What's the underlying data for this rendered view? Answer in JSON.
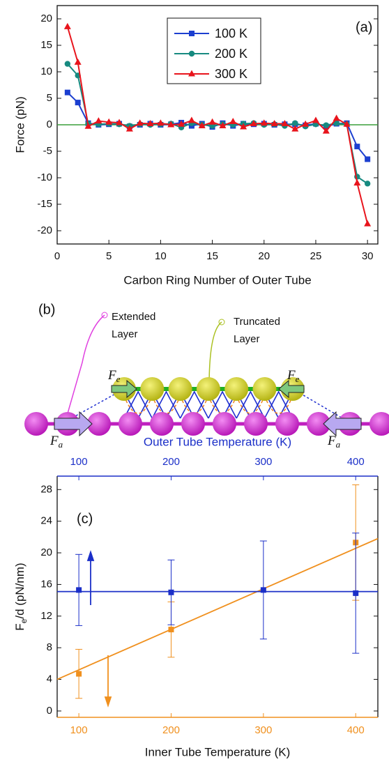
{
  "chart_data": [
    {
      "type": "line",
      "annotation": "(a)",
      "x_label": "Carbon Ring Number of Outer Tube",
      "y_label": "Force (pN)",
      "x": [
        1,
        2,
        3,
        4,
        5,
        6,
        7,
        8,
        9,
        10,
        11,
        12,
        13,
        14,
        15,
        16,
        17,
        18,
        19,
        20,
        21,
        22,
        23,
        24,
        25,
        26,
        27,
        28,
        29,
        30
      ],
      "xlim": [
        0,
        31
      ],
      "xticks": [
        0,
        5,
        10,
        15,
        20,
        25,
        30
      ],
      "ylim": [
        -22.5,
        22.5
      ],
      "yticks": [
        -20,
        -15,
        -10,
        -5,
        0,
        5,
        10,
        15,
        20
      ],
      "reference_line": {
        "y": 0,
        "color": "#3a9e3a"
      },
      "series": [
        {
          "name": "100 K",
          "color": "#1c3fd0",
          "marker": "square",
          "values": [
            6.1,
            4.2,
            0.3,
            0,
            0.1,
            0.2,
            -0.3,
            0,
            0.2,
            0,
            0.1,
            0.4,
            -0.2,
            0.2,
            -0.4,
            0.3,
            -0.2,
            0.2,
            0.1,
            0.2,
            0,
            0.1,
            0.1,
            -0.1,
            0.2,
            -0.3,
            0.2,
            0.3,
            -4.1,
            -6.5
          ]
        },
        {
          "name": "200 K",
          "color": "#178a80",
          "marker": "circle",
          "values": [
            11.5,
            9.3,
            0.2,
            0.1,
            0.2,
            0.1,
            -0.2,
            0.1,
            0,
            0.1,
            0.2,
            -0.5,
            0.3,
            0,
            -0.2,
            0.1,
            0,
            0.2,
            0.3,
            0,
            0.1,
            -0.2,
            0.3,
            -0.3,
            0.1,
            -0.1,
            0.3,
            0.1,
            -9.8,
            -11.1
          ]
        },
        {
          "name": "300 K",
          "color": "#e8141c",
          "marker": "triangle",
          "values": [
            18.5,
            11.8,
            -0.3,
            0.7,
            0.5,
            0.4,
            -0.8,
            0.3,
            0.2,
            0.3,
            0,
            0.1,
            0.8,
            -0.2,
            0.5,
            -0.2,
            0.6,
            -0.4,
            0.2,
            0.3,
            0.2,
            0.2,
            -0.8,
            0.1,
            0.8,
            -1.2,
            1.2,
            0.1,
            -11.0,
            -18.7
          ]
        }
      ]
    },
    {
      "type": "scatter",
      "annotation": "(c)",
      "x_label": "Inner Tube Temperature (K)",
      "x2_label": "Outer Tube Temperature (K)",
      "y_label": {
        "base": "F",
        "sub": "e",
        "rest": "/d (pN/nm)"
      },
      "xlim": [
        76.5,
        424
      ],
      "xticks": [
        100,
        200,
        300,
        400
      ],
      "x_color": "#f0901e",
      "x2lim": [
        76.5,
        424
      ],
      "x2ticks": [
        100,
        200,
        300,
        400
      ],
      "x2_color": "#1b2fc8",
      "ylim": [
        -0.8,
        29.7
      ],
      "yticks": [
        0,
        4,
        8,
        12,
        16,
        20,
        24,
        28
      ],
      "series": [
        {
          "color": "#f0901e",
          "x": [
            100,
            200,
            400
          ],
          "values": [
            4.7,
            10.3,
            21.3
          ],
          "errors": [
            3.1,
            3.5,
            7.3
          ]
        },
        {
          "color": "#1b2fc8",
          "axis": "x2",
          "x": [
            100,
            200,
            300,
            400
          ],
          "values": [
            15.3,
            15.0,
            15.3,
            14.9
          ],
          "errors": [
            4.5,
            4.1,
            6.2,
            7.6
          ]
        }
      ],
      "fits": [
        {
          "color": "#f0901e",
          "x": [
            76.5,
            424
          ],
          "values": [
            4.0,
            21.8
          ]
        },
        {
          "color": "#1b2fc8",
          "axis": "x2",
          "x": [
            76.5,
            424
          ],
          "values": [
            15.1,
            15.1
          ]
        }
      ]
    }
  ],
  "diagram": {
    "label": "(b)",
    "extended": [
      "Extended",
      "Layer"
    ],
    "truncated": [
      "Truncated",
      "Layer"
    ],
    "forces": [
      {
        "base": "F",
        "sub": "e"
      },
      {
        "base": "F",
        "sub": "e"
      },
      {
        "base": "F",
        "sub": "a"
      },
      {
        "base": "F",
        "sub": "a"
      }
    ]
  }
}
